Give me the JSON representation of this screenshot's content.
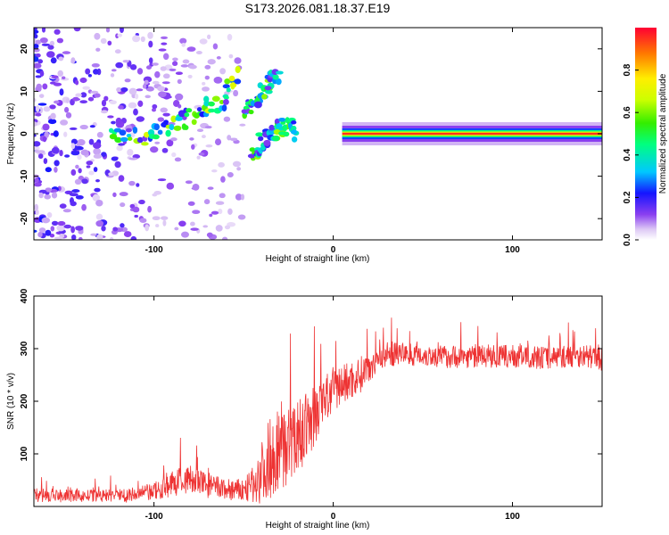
{
  "chart_data": [
    {
      "type": "heatmap",
      "title": "S173.2026.081.18.37.E19",
      "xlabel": "Height of straight line (km)",
      "ylabel": "Frequency (Hz)",
      "xlim": [
        -167,
        150
      ],
      "ylim": [
        -25,
        25
      ],
      "xticks": [
        -100,
        0,
        100
      ],
      "yticks": [
        20,
        10,
        0,
        -10,
        -20
      ],
      "colorbar": {
        "label": "Normalized spectral amplitude",
        "range": [
          0.0,
          1.0
        ],
        "ticks": [
          0.0,
          0.2,
          0.4,
          0.6,
          0.8
        ]
      },
      "features": [
        {
          "name": "broadband noise",
          "x_range": [
            -167,
            -50
          ],
          "y_range": [
            -25,
            25
          ],
          "amplitude": 0.15
        },
        {
          "name": "rising chirp A",
          "points": [
            [
              -125,
              0
            ],
            [
              -105,
              -1
            ],
            [
              -90,
              2
            ],
            [
              -75,
              5
            ],
            [
              -62,
              8
            ],
            [
              -53,
              14
            ]
          ],
          "amplitude": 0.6
        },
        {
          "name": "rising chirp B",
          "points": [
            [
              -50,
              5
            ],
            [
              -42,
              8
            ],
            [
              -36,
              12
            ],
            [
              -30,
              14
            ]
          ],
          "amplitude": 0.5
        },
        {
          "name": "converging arc",
          "points": [
            [
              -45,
              -5
            ],
            [
              -40,
              -2
            ],
            [
              -33,
              0
            ],
            [
              -27,
              2
            ],
            [
              -20,
              0
            ]
          ],
          "amplitude": 0.55
        },
        {
          "name": "steady tone",
          "x_range": [
            5,
            150
          ],
          "frequency": 0,
          "amplitude": 0.95
        }
      ]
    },
    {
      "type": "line",
      "xlabel": "Height of straight line (km)",
      "ylabel": "SNR (10 * v/v)",
      "xlim": [
        -167,
        150
      ],
      "ylim": [
        0,
        400
      ],
      "xticks": [
        -100,
        0,
        100
      ],
      "yticks": [
        100,
        200,
        300,
        400
      ],
      "series": [
        {
          "name": "SNR",
          "color": "#ee3333",
          "x": [
            -167,
            -150,
            -130,
            -110,
            -100,
            -90,
            -80,
            -70,
            -60,
            -50,
            -45,
            -40,
            -35,
            -30,
            -25,
            -20,
            -15,
            -10,
            -5,
            0,
            5,
            10,
            15,
            20,
            25,
            30,
            40,
            50,
            60,
            80,
            100,
            120,
            140,
            150
          ],
          "values": [
            22,
            20,
            20,
            22,
            28,
            42,
            52,
            40,
            32,
            30,
            40,
            65,
            95,
            110,
            115,
            130,
            150,
            175,
            200,
            220,
            232,
            240,
            250,
            268,
            280,
            290,
            290,
            288,
            285,
            285,
            285,
            283,
            287,
            280
          ],
          "noise": [
            15,
            12,
            12,
            15,
            18,
            25,
            28,
            25,
            22,
            22,
            35,
            60,
            80,
            80,
            75,
            70,
            65,
            60,
            55,
            45,
            40,
            38,
            35,
            30,
            28,
            25,
            22,
            22,
            22,
            22,
            22,
            22,
            22,
            22
          ]
        }
      ]
    }
  ]
}
